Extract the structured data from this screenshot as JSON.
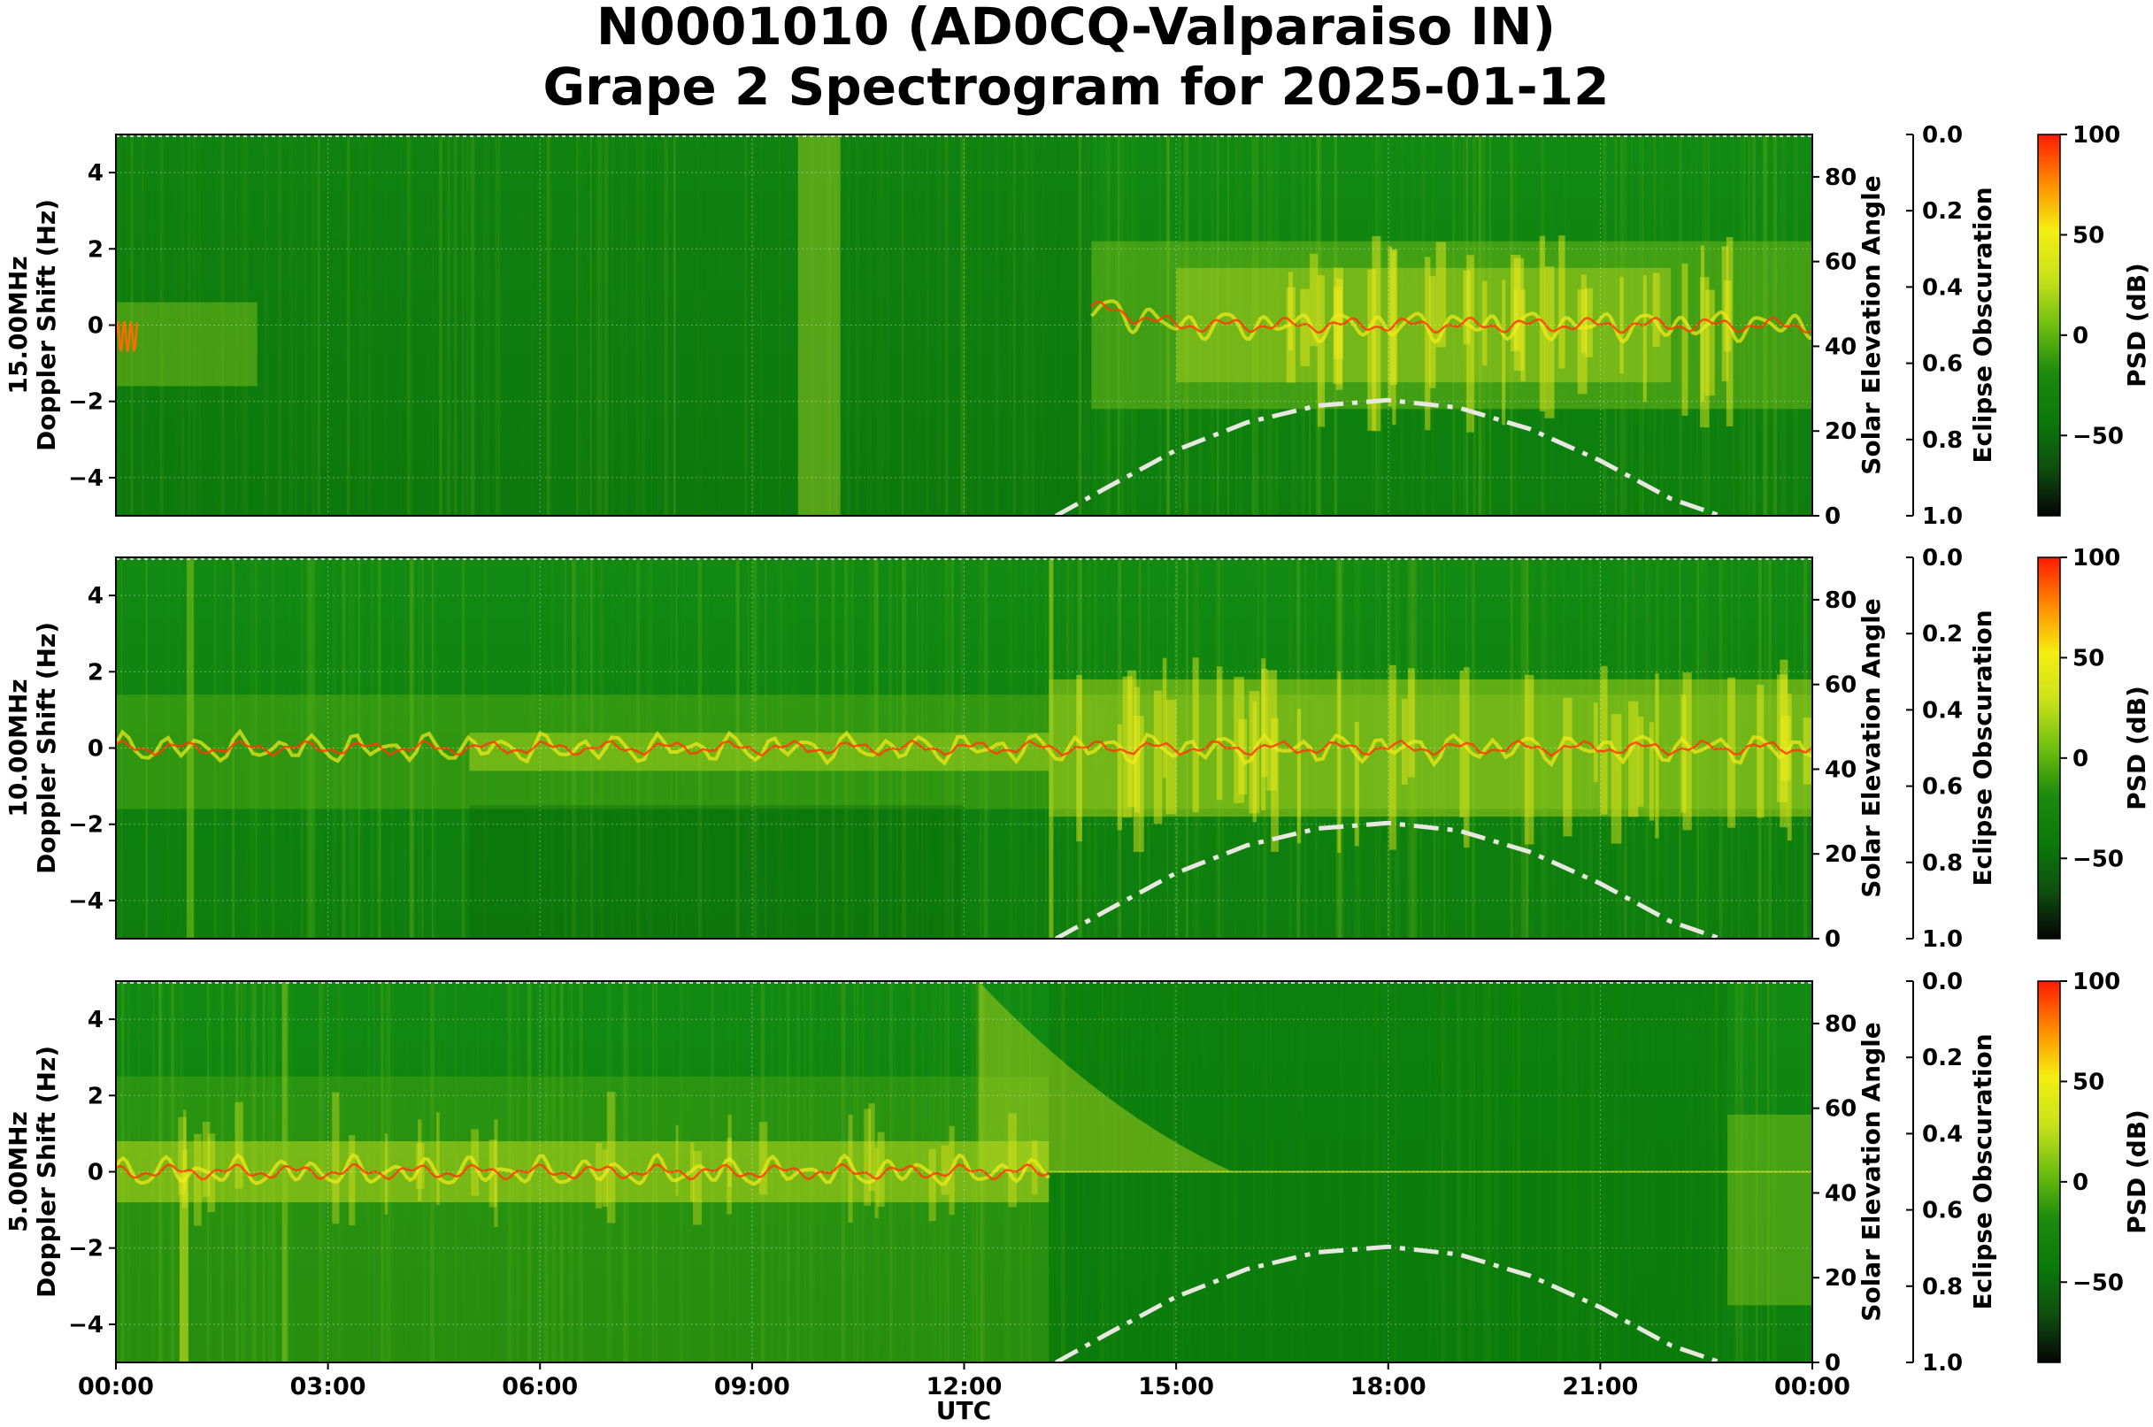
{
  "chart_data": {
    "type": "heatmap",
    "title_line1": "N0001010 (AD0CQ-Valparaiso IN)",
    "title_line2": "Grape 2 Spectrogram for 2025-01-12",
    "xlabel": "UTC",
    "x_ticks": [
      "00:00",
      "03:00",
      "06:00",
      "09:00",
      "12:00",
      "15:00",
      "18:00",
      "21:00",
      "00:00"
    ],
    "xlim_hours": [
      0,
      24
    ],
    "ylim": [
      -5,
      5
    ],
    "y_ticks": [
      "4",
      "2",
      "0",
      "−2",
      "−4"
    ],
    "y_tick_values": [
      4,
      2,
      0,
      -2,
      -4
    ],
    "solar_axis": {
      "label": "Solar Elevation Angle",
      "ticks": [
        "0",
        "20",
        "40",
        "60",
        "80"
      ],
      "tick_values": [
        0,
        20,
        40,
        60,
        80
      ],
      "range": [
        0,
        90
      ]
    },
    "eclipse_axis": {
      "label": "Eclipse Obscuration",
      "ticks": [
        "0.0",
        "0.2",
        "0.4",
        "0.6",
        "0.8",
        "1.0"
      ],
      "tick_values": [
        0,
        0.2,
        0.4,
        0.6,
        0.8,
        1.0
      ],
      "range": [
        0,
        1
      ]
    },
    "colorbar": {
      "label": "PSD (dB)",
      "ticks": [
        "100",
        "50",
        "0",
        "−50"
      ],
      "tick_values": [
        100,
        50,
        0,
        -50
      ],
      "range": [
        -90,
        100
      ],
      "colors": [
        "#050505",
        "#0f4f0f",
        "#0a7a0a",
        "#1c8a0c",
        "#6fbf10",
        "#c9e21a",
        "#f5ee10",
        "#ff8a00",
        "#ff1a00"
      ]
    },
    "panels": [
      {
        "frequency_label": "15.00MHz",
        "ylabel": "Doppler Shift (Hz)",
        "solar_elevation_curve": {
          "x_hours": [
            13.3,
            14,
            15,
            16,
            17,
            18,
            19,
            20,
            21,
            22,
            22.7
          ],
          "y_deg": [
            0,
            6.5,
            15.5,
            22,
            26,
            27.3,
            25.5,
            20.5,
            13,
            4,
            0
          ]
        }
      },
      {
        "frequency_label": "10.00MHz",
        "ylabel": "Doppler Shift (Hz)",
        "solar_elevation_curve": {
          "x_hours": [
            13.3,
            14,
            15,
            16,
            17,
            18,
            19,
            20,
            21,
            22,
            22.7
          ],
          "y_deg": [
            0,
            6.5,
            15.5,
            22,
            26,
            27.3,
            25.5,
            20.5,
            13,
            4,
            0
          ]
        }
      },
      {
        "frequency_label": "5.00MHz",
        "ylabel": "Doppler Shift (Hz)",
        "solar_elevation_curve": {
          "x_hours": [
            13.3,
            14,
            15,
            16,
            17,
            18,
            19,
            20,
            21,
            22,
            22.7
          ],
          "y_deg": [
            0,
            6.5,
            15.5,
            22,
            26,
            27.3,
            25.5,
            20.5,
            13,
            4,
            0
          ]
        }
      }
    ],
    "curve_style": {
      "color": "#e8e8e0",
      "dash": "dash-dot"
    }
  }
}
